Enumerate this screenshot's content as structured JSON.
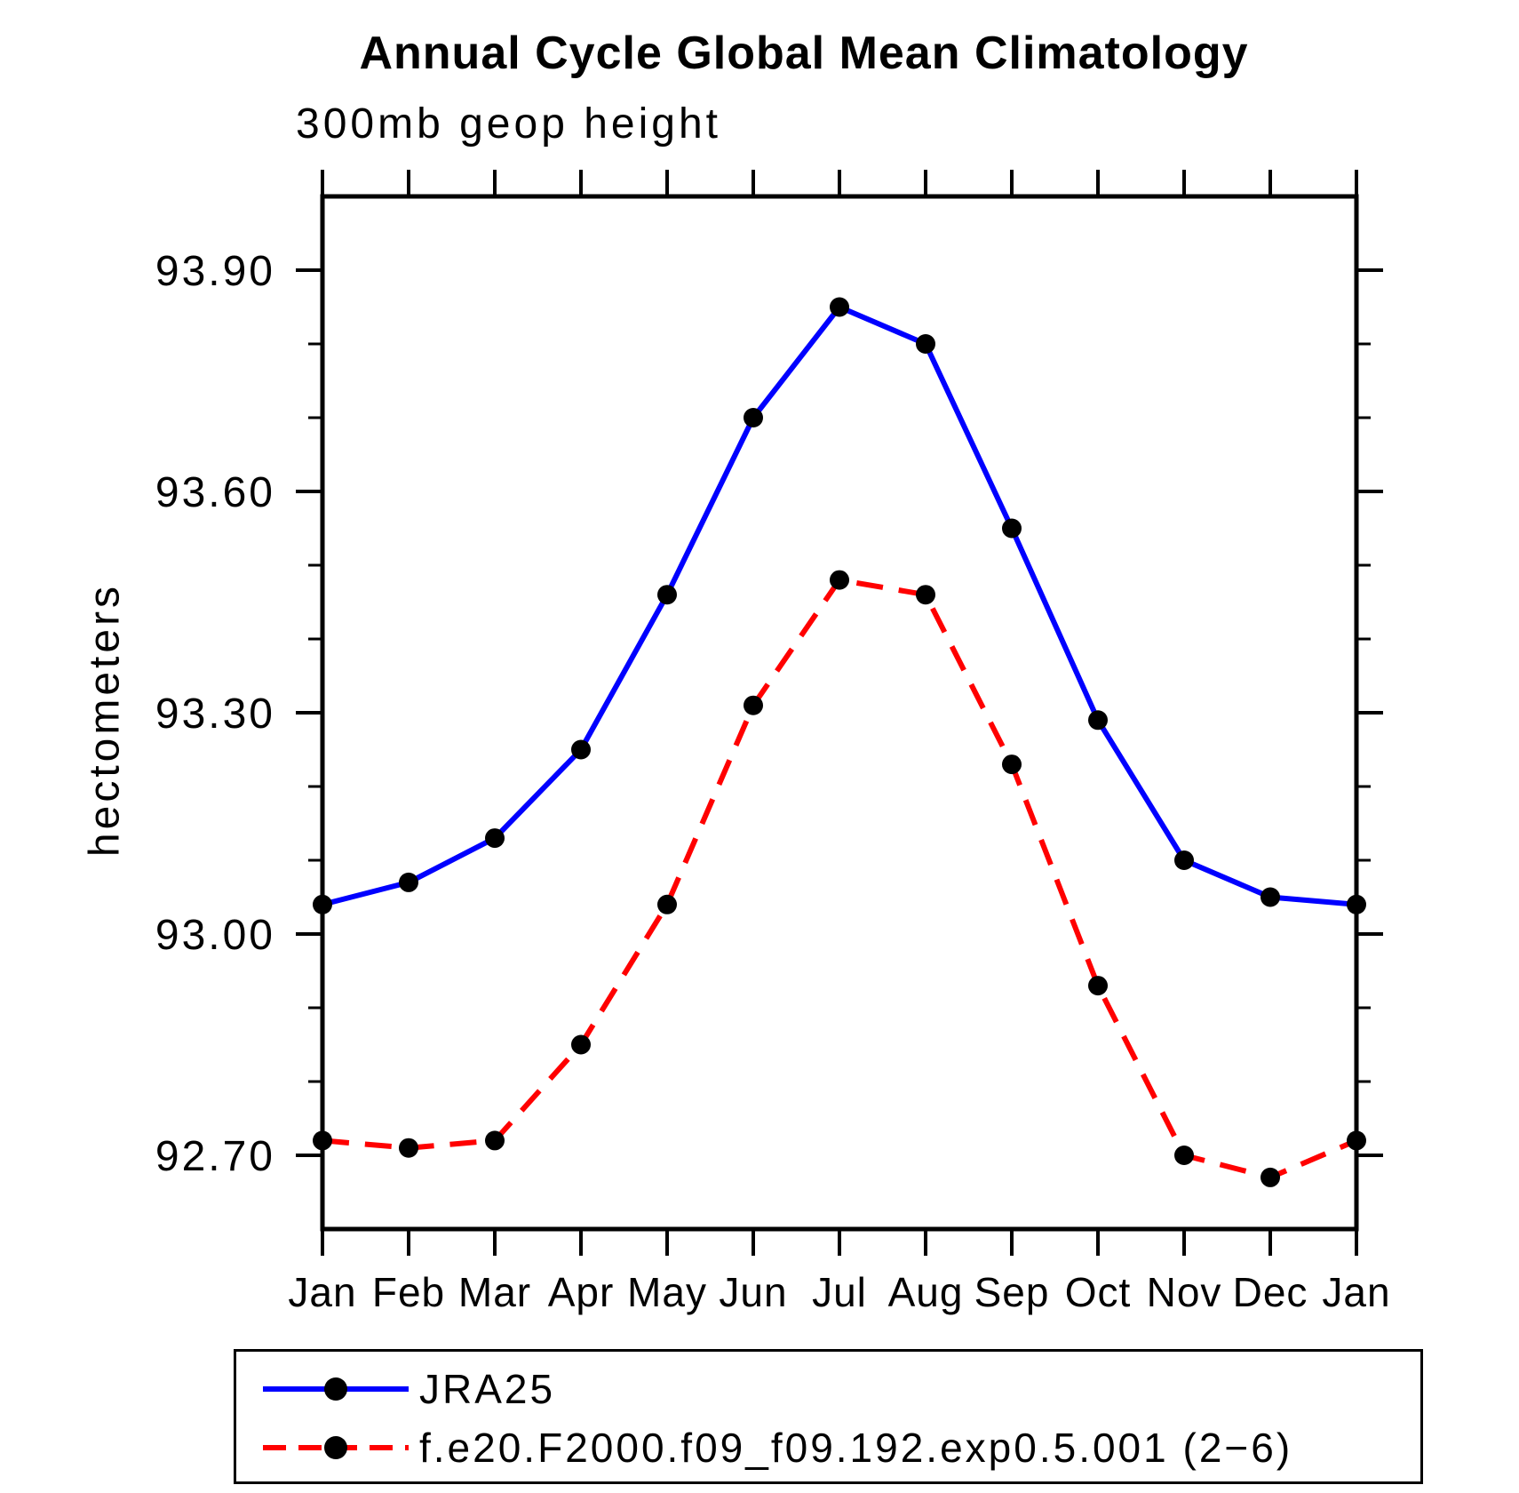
{
  "chart_data": {
    "type": "line",
    "title": "Annual Cycle Global Mean Climatology",
    "subtitle": "300mb geop height",
    "ylabel": "hectometers",
    "xlabel": "",
    "categories": [
      "Jan",
      "Feb",
      "Mar",
      "Apr",
      "May",
      "Jun",
      "Jul",
      "Aug",
      "Sep",
      "Oct",
      "Nov",
      "Dec",
      "Jan"
    ],
    "ylim": [
      92.6,
      94.0
    ],
    "ytick_major": [
      92.7,
      93.0,
      93.3,
      93.6,
      93.9
    ],
    "ytick_major_labels": [
      "92.70",
      "93.00",
      "93.30",
      "93.60",
      "93.90"
    ],
    "ytick_minor_step": 0.1,
    "grid": false,
    "legend_position": "bottom",
    "axis_color": "#000000",
    "series": [
      {
        "name": "JRA25",
        "color": "#0000ff",
        "style": "solid",
        "marker": "circle",
        "marker_color": "#000000",
        "values": [
          93.04,
          93.07,
          93.13,
          93.25,
          93.46,
          93.7,
          93.85,
          93.8,
          93.55,
          93.29,
          93.1,
          93.05,
          93.04
        ]
      },
      {
        "name": "f.e20.F2000.f09_f09.192.exp0.5.001 (2−6)",
        "color": "#ff0000",
        "style": "dashed",
        "marker": "circle",
        "marker_color": "#000000",
        "values": [
          92.72,
          92.71,
          92.72,
          92.85,
          93.04,
          93.31,
          93.48,
          93.46,
          93.23,
          92.93,
          92.7,
          92.67,
          92.72
        ]
      }
    ]
  }
}
